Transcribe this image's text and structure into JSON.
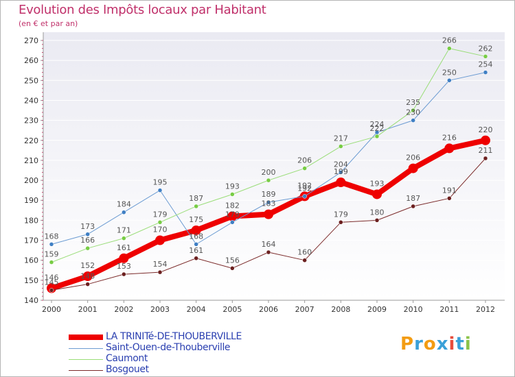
{
  "title": "Evolution des Impôts locaux par Habitant",
  "subtitle": "(en € et par an)",
  "logo": {
    "letters": [
      "P",
      "r",
      "o",
      "x",
      "i",
      "t",
      "i"
    ],
    "colors": [
      "#f39c12",
      "#3aa0d8",
      "#f39c12",
      "#3aa0d8",
      "#e74c3c",
      "#3aa0d8",
      "#8bc34a"
    ]
  },
  "chart_data": {
    "type": "line",
    "categories": [
      "2000",
      "2001",
      "2002",
      "2003",
      "2004",
      "2005",
      "2006",
      "2007",
      "2008",
      "2009",
      "2010",
      "2011",
      "2012"
    ],
    "ylim": [
      140,
      270
    ],
    "yticks": [
      140,
      150,
      160,
      170,
      180,
      190,
      200,
      210,
      220,
      230,
      240,
      250,
      260,
      270
    ],
    "grid": "horizontal",
    "series": [
      {
        "name": "LA TRINITé-DE-THOUBERVILLE",
        "color": "#ee0000",
        "width": 8,
        "marker": 7,
        "values": [
          146,
          152,
          161,
          170,
          175,
          182,
          183,
          192,
          199,
          193,
          206,
          216,
          220
        ]
      },
      {
        "name": "Saint-Ouen-de-Thouberville",
        "color": "#6b9bd2",
        "marker_color": "#3f7fc4",
        "width": 1,
        "marker": 3,
        "values": [
          168,
          173,
          184,
          195,
          168,
          179,
          189,
          192,
          204,
          224,
          230,
          250,
          254
        ]
      },
      {
        "name": "Caumont",
        "color": "#99dd77",
        "marker_color": "#77cc44",
        "width": 1,
        "marker": 3,
        "values": [
          159,
          166,
          171,
          179,
          187,
          193,
          200,
          206,
          217,
          222,
          235,
          266,
          262
        ]
      },
      {
        "name": "Bosgouet",
        "color": "#7b2a2a",
        "marker_color": "#6b1f1f",
        "width": 1,
        "marker": 3,
        "values": [
          145,
          148,
          153,
          154,
          161,
          156,
          164,
          160,
          179,
          180,
          187,
          191,
          211
        ]
      }
    ]
  }
}
